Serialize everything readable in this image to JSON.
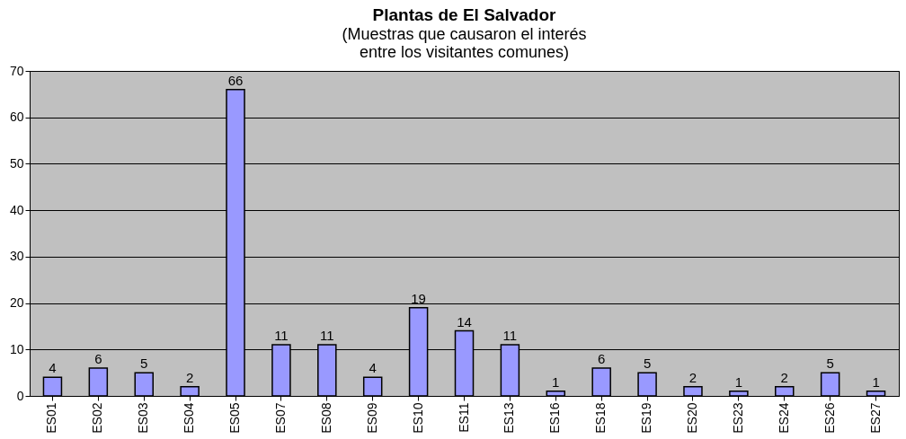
{
  "chart_data": {
    "type": "bar",
    "title": "Plantas de El Salvador",
    "subtitle": "(Muestras que causaron el interés\nentre los visitantes comunes)",
    "categories": [
      "ES01",
      "ES02",
      "ES03",
      "ES04",
      "ES05",
      "ES07",
      "ES08",
      "ES09",
      "ES10",
      "ES11",
      "ES13",
      "ES16",
      "ES18",
      "ES19",
      "ES20",
      "ES23",
      "ES24",
      "ES26",
      "ES27"
    ],
    "values": [
      4,
      6,
      5,
      2,
      66,
      11,
      11,
      4,
      19,
      14,
      11,
      1,
      6,
      5,
      2,
      1,
      2,
      5,
      1
    ],
    "color": "#9999ff",
    "ylim": [
      0,
      70
    ],
    "yticks": [
      0,
      10,
      20,
      30,
      40,
      50,
      60,
      70
    ],
    "grid": "y",
    "data_labels": true
  }
}
